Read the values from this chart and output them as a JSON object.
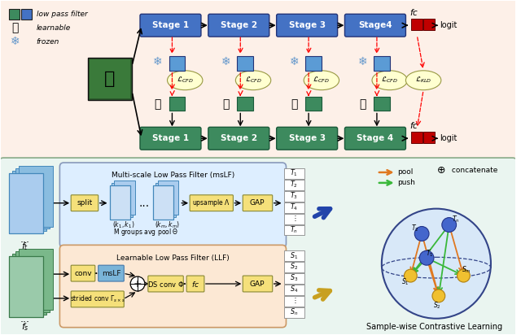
{
  "bg_top": "#fdf0e8",
  "bg_bottom": "#eaf5f0",
  "blue_box": "#4472c4",
  "green_box": "#3d8a5e",
  "yellow_box": "#f5e07a",
  "yellow_box2": "#f0d060",
  "lpf_blue": "#5b9bd5",
  "red_box": "#c00000",
  "pool_color": "#e07820",
  "push_color": "#3ab83a",
  "msLF_box": "#ddeeff",
  "LLF_box": "#fde8d8",
  "top_stages_teacher": [
    "Stage 1",
    "Stage 2",
    "Stage 3",
    "Stage4"
  ],
  "top_stages_student": [
    "Stage 1",
    "Stage 2",
    "Stage 3",
    "Stage 4"
  ],
  "sphere_bg": "#ddeeff",
  "blue_node": "#4477cc",
  "yellow_node": "#f0c040"
}
